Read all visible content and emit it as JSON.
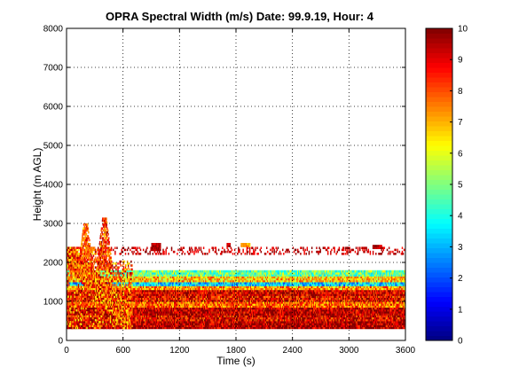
{
  "chart_data": [
    {
      "type": "heatmap",
      "title": "OPRA Spectral Width (m/s)  Date: 99.9.19, Hour: 4",
      "xlabel": "Time (s)",
      "ylabel": "Height (m AGL)",
      "xlim": [
        0,
        3600
      ],
      "ylim": [
        0,
        8000
      ],
      "x_ticks": [
        "0",
        "600",
        "1200",
        "1800",
        "2400",
        "3000",
        "3600"
      ],
      "y_ticks": [
        "0",
        "1000",
        "2000",
        "3000",
        "4000",
        "5000",
        "6000",
        "7000",
        "8000"
      ],
      "grid": true,
      "colormap": "jet",
      "color_range": [
        0,
        10
      ],
      "colorbar_ticks": [
        "0",
        "1",
        "2",
        "3",
        "4",
        "5",
        "6",
        "7",
        "8",
        "9",
        "10"
      ],
      "height_bands": [
        {
          "bottom": 300,
          "top": 500,
          "value": 9.6
        },
        {
          "bottom": 500,
          "top": 650,
          "value": 9.0
        },
        {
          "bottom": 650,
          "top": 850,
          "value": 9.5
        },
        {
          "bottom": 850,
          "top": 1000,
          "value": 7.8
        },
        {
          "bottom": 1000,
          "top": 1150,
          "value": 8.8
        },
        {
          "bottom": 1150,
          "top": 1300,
          "value": 9.2
        },
        {
          "bottom": 1300,
          "top": 1400,
          "value": 7.2
        },
        {
          "bottom": 1400,
          "top": 1500,
          "value": 3.4
        },
        {
          "bottom": 1500,
          "top": 1650,
          "value": 6.8
        },
        {
          "bottom": 1650,
          "top": 1800,
          "value": 4.8
        },
        {
          "bottom": 2200,
          "top": 2400,
          "value": 9.3
        }
      ],
      "upper_patches": [
        {
          "x": [
            220,
            300
          ],
          "y": [
            2300,
            2400
          ],
          "value": 7.5
        },
        {
          "x": [
            900,
            1000
          ],
          "y": [
            2300,
            2500
          ],
          "value": 9.5
        },
        {
          "x": [
            1700,
            1740
          ],
          "y": [
            2400,
            2500
          ],
          "value": 9.5
        },
        {
          "x": [
            1850,
            1950
          ],
          "y": [
            2400,
            2500
          ],
          "value": 7.2
        },
        {
          "x": [
            3250,
            3350
          ],
          "y": [
            2350,
            2450
          ],
          "value": 9.5
        }
      ],
      "plumes": [
        {
          "x_center": 200,
          "top": 3000,
          "value": 9.5
        },
        {
          "x_center": 400,
          "top": 3150,
          "value": 9.8
        }
      ]
    }
  ]
}
